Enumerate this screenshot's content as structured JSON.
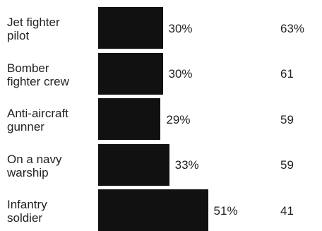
{
  "chart_data": {
    "type": "bar",
    "orientation": "horizontal",
    "categories": [
      "Jet fighter\npilot",
      "Bomber\nfighter crew",
      "Anti-aircraft\ngunner",
      "On a navy\nwarship",
      "Infantry\nsoldier"
    ],
    "values": [
      30,
      30,
      29,
      33,
      51
    ],
    "value_labels": [
      "30%",
      "30%",
      "29%",
      "33%",
      "51%"
    ],
    "right_values": [
      63,
      61,
      59,
      59,
      41
    ],
    "right_labels": [
      "63%",
      "61",
      "59",
      "59",
      "41"
    ],
    "bar_color": "#111111"
  }
}
